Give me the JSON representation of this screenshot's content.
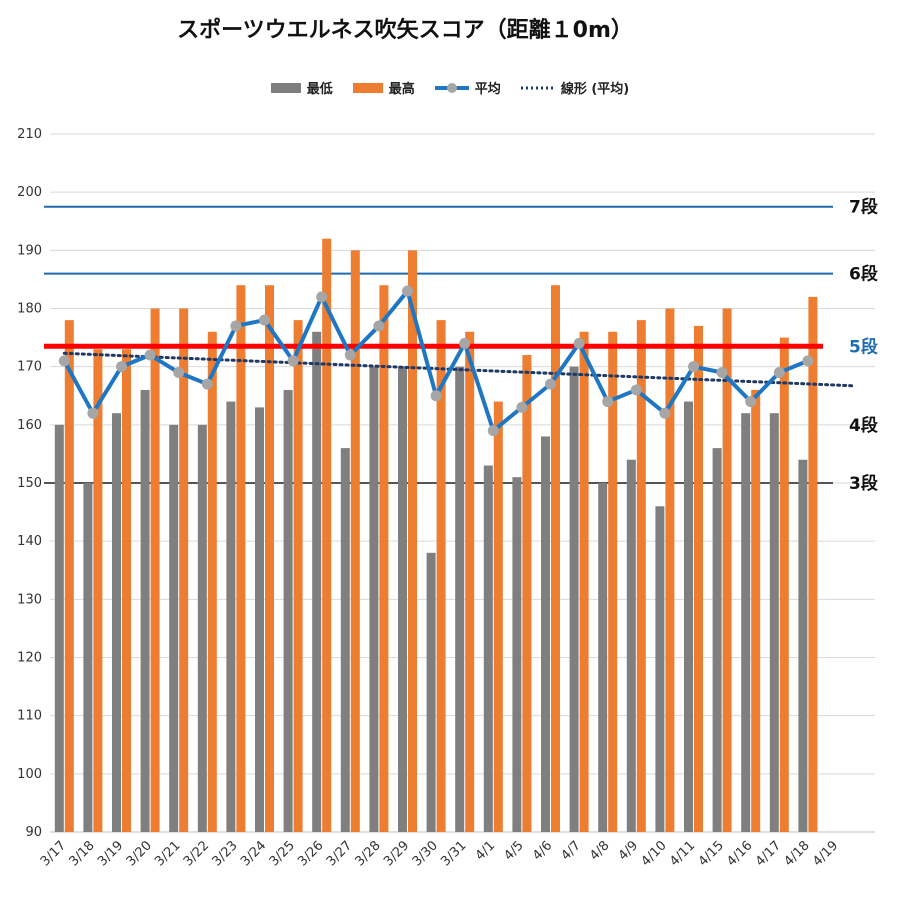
{
  "title": "スポーツウエルネス吹矢スコア（距離１0m）",
  "legend": [
    {
      "label": "最低",
      "kind": "bar",
      "color": "#7f7f7f"
    },
    {
      "label": "最高",
      "kind": "bar",
      "color": "#ed7d31"
    },
    {
      "label": "平均",
      "kind": "line-marker",
      "color": "#1f77c4"
    },
    {
      "label": "線形 (平均)",
      "kind": "dotted",
      "color": "#1f3864"
    }
  ],
  "chart_data": {
    "type": "bar",
    "title": "スポーツウエルネス吹矢スコア（距離１0m）",
    "categories": [
      "3/17",
      "3/18",
      "3/19",
      "3/20",
      "3/21",
      "3/22",
      "3/23",
      "3/24",
      "3/25",
      "3/26",
      "3/27",
      "3/28",
      "3/29",
      "3/30",
      "3/31",
      "4/1",
      "4/5",
      "4/6",
      "4/7",
      "4/8",
      "4/9",
      "4/10",
      "4/11",
      "4/15",
      "4/16",
      "4/17",
      "4/18",
      "4/19"
    ],
    "ylim": [
      90,
      210
    ],
    "yticks": [
      90,
      100,
      110,
      120,
      130,
      140,
      150,
      160,
      170,
      180,
      190,
      200,
      210
    ],
    "grid": true,
    "legend_position": "top",
    "series": [
      {
        "name": "最低",
        "type": "bar",
        "color": "#7f7f7f",
        "values": [
          160,
          150,
          162,
          166,
          160,
          160,
          164,
          163,
          166,
          176,
          156,
          170,
          170,
          138,
          170,
          153,
          151,
          158,
          170,
          150,
          154,
          146,
          164,
          156,
          162,
          162,
          154,
          null
        ]
      },
      {
        "name": "最高",
        "type": "bar",
        "color": "#ed7d31",
        "values": [
          178,
          173,
          173,
          180,
          180,
          176,
          184,
          184,
          178,
          192,
          190,
          184,
          190,
          178,
          176,
          164,
          172,
          184,
          176,
          176,
          178,
          180,
          177,
          180,
          166,
          175,
          182,
          null
        ]
      },
      {
        "name": "平均",
        "type": "line",
        "color": "#1f77c4",
        "values": [
          171,
          162,
          170,
          172,
          169,
          167,
          177,
          178,
          171,
          182,
          172,
          177,
          183,
          165,
          174,
          159,
          163,
          167,
          174,
          164,
          166,
          162,
          170,
          169,
          164,
          169,
          171,
          null
        ]
      },
      {
        "name": "線形 (平均)",
        "type": "trendline",
        "color": "#1f3864",
        "values": [
          172.3,
          172.1,
          171.9,
          171.7,
          171.5,
          171.3,
          171.1,
          170.9,
          170.7,
          170.5,
          170.3,
          170.1,
          169.9,
          169.7,
          169.5,
          169.3,
          169.1,
          168.9,
          168.7,
          168.5,
          168.3,
          168.1,
          167.9,
          167.7,
          167.5,
          167.3,
          167.1,
          166.9
        ]
      }
    ],
    "reference_lines": [
      {
        "label": "7段",
        "value": 197.5,
        "color": "#1f6bb0",
        "label_color": "#111111"
      },
      {
        "label": "6段",
        "value": 186,
        "color": "#1f6bb0",
        "label_color": "#111111"
      },
      {
        "label": "5段",
        "value": 173.5,
        "color": "#ff0000",
        "label_color": "#1f6bb0"
      },
      {
        "label": "4段",
        "value": 160,
        "color": null,
        "label_color": "#111111"
      },
      {
        "label": "3段",
        "value": 150,
        "color": "#555555",
        "label_color": "#111111"
      }
    ]
  }
}
